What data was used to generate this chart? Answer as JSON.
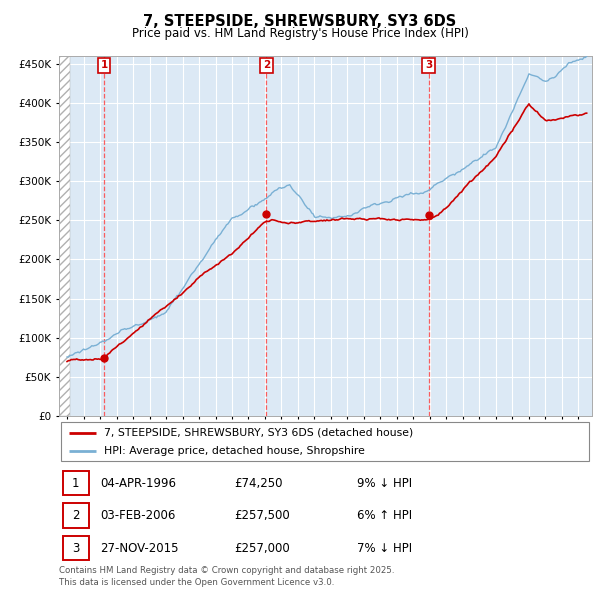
{
  "title": "7, STEEPSIDE, SHREWSBURY, SY3 6DS",
  "subtitle": "Price paid vs. HM Land Registry's House Price Index (HPI)",
  "ytick_vals": [
    0,
    50000,
    100000,
    150000,
    200000,
    250000,
    300000,
    350000,
    400000,
    450000
  ],
  "ylim": [
    0,
    460000
  ],
  "xlim_start": 1993.5,
  "xlim_end": 2025.8,
  "sale_dates": [
    1996.25,
    2006.08,
    2015.92
  ],
  "sale_prices": [
    74250,
    257500,
    257000
  ],
  "sale_labels": [
    "1",
    "2",
    "3"
  ],
  "sale_info": [
    {
      "label": "1",
      "date": "04-APR-1996",
      "price": "£74,250",
      "hpi": "9% ↓ HPI"
    },
    {
      "label": "2",
      "date": "03-FEB-2006",
      "price": "£257,500",
      "hpi": "6% ↑ HPI"
    },
    {
      "label": "3",
      "date": "27-NOV-2015",
      "price": "£257,000",
      "hpi": "7% ↓ HPI"
    }
  ],
  "legend_red_label": "7, STEEPSIDE, SHREWSBURY, SY3 6DS (detached house)",
  "legend_blue_label": "HPI: Average price, detached house, Shropshire",
  "footer": "Contains HM Land Registry data © Crown copyright and database right 2025.\nThis data is licensed under the Open Government Licence v3.0.",
  "red_color": "#cc0000",
  "blue_color": "#7ab0d4",
  "plot_bg": "#dce9f5",
  "grid_color": "#ffffff",
  "hatch_color": "#b0b0b0"
}
